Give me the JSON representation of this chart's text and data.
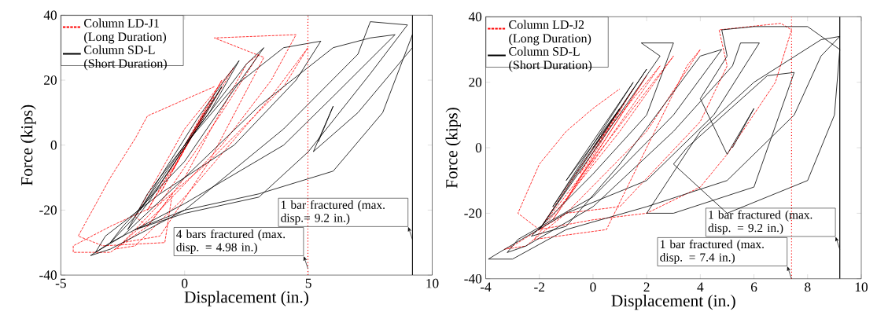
{
  "chart_data": [
    {
      "type": "line",
      "xlabel": "Displacement (in.)",
      "ylabel": "Force (kips)",
      "xlim": [
        -5,
        10
      ],
      "ylim": [
        -40,
        40
      ],
      "xticks": [
        -5,
        0,
        5,
        10
      ],
      "yticks": [
        -40,
        -20,
        0,
        20,
        40
      ],
      "legend": "top left",
      "ref_lines": [
        {
          "axis": "x",
          "value": 4.98,
          "color": "#ff0000",
          "line_style": "dotted"
        },
        {
          "axis": "x",
          "value": 9.2,
          "color": "#000000",
          "line_style": "solid"
        }
      ],
      "annotations": [
        {
          "text": "4 bars fractured (max. disp. = 4.98 in.)",
          "x": 4.98,
          "y": -38
        },
        {
          "text": "1 bar fractured (max. disp.= 9.2 in.)",
          "x": 9.2,
          "y": -29
        }
      ],
      "series": [
        {
          "name": "Column LD-J1 (Long Duration)",
          "color": "#ff0000",
          "line_style": "dashed",
          "x": [
            0,
            0.8,
            -0.5,
            1.2,
            -1,
            1.5,
            -1.5,
            2,
            0,
            -2,
            -1.5,
            0,
            2.5,
            3,
            1.5,
            -1,
            -2.5,
            -1,
            1,
            3.2,
            1.2,
            4.5,
            3.5,
            1.5,
            -1,
            -2.8,
            -2,
            0,
            3.5,
            4.98,
            4,
            1,
            -1,
            -3,
            -4.5,
            -4.5,
            -3,
            -1.5,
            -0.5,
            -0.8,
            -3.3,
            -4.3,
            -3,
            -2,
            -1.5,
            0,
            1.2
          ],
          "values": [
            0,
            10,
            -8,
            15,
            -15,
            20,
            -20,
            24,
            5,
            -22,
            -25,
            -10,
            25,
            28,
            10,
            -18,
            -30,
            -28,
            -5,
            27,
            33,
            34,
            20,
            0,
            -20,
            -32,
            -31,
            -16,
            15,
            30,
            18,
            -5,
            -18,
            -25,
            -31,
            -33,
            -33,
            -25,
            -15,
            -30,
            -31,
            -28,
            -10,
            2,
            9,
            14,
            18
          ]
        },
        {
          "name": "Column SD-L (Short Duration)",
          "color": "#000000",
          "line_style": "solid",
          "x": [
            0,
            1,
            1.5,
            0.5,
            -1,
            -1.8,
            -1,
            0.5,
            1.8,
            2.2,
            1,
            -1.5,
            -2.3,
            -1.5,
            0.5,
            2.5,
            3.2,
            1.8,
            0,
            -2.5,
            -3,
            -2,
            0,
            2,
            4,
            5.5,
            4.5,
            2,
            -1,
            -3.2,
            -3.6,
            -2.5,
            0,
            3,
            6,
            7.5,
            8.5,
            6,
            4,
            0,
            -3,
            -3.8,
            -3,
            0,
            4,
            7,
            7.5,
            9,
            7.5,
            5,
            3,
            0,
            -2,
            0,
            3,
            6,
            8,
            9.2,
            9.2,
            7,
            5.2,
            6,
            5.4
          ],
          "values": [
            0,
            12,
            18,
            5,
            -12,
            -20,
            -10,
            8,
            22,
            26,
            10,
            -15,
            -26,
            -18,
            5,
            25,
            30,
            15,
            -5,
            -25,
            -30,
            -22,
            0,
            18,
            30,
            32,
            20,
            0,
            -15,
            -28,
            -33,
            -28,
            -10,
            12,
            30,
            33,
            34,
            15,
            0,
            -18,
            -30,
            -34,
            -32,
            -20,
            5,
            28,
            38,
            37,
            22,
            -2,
            -16,
            -21,
            -26,
            -20,
            -15,
            -8,
            10,
            34,
            30,
            10,
            -2,
            12,
            1
          ]
        }
      ]
    },
    {
      "type": "line",
      "xlabel": "Displacement (in.)",
      "ylabel": "Force (kips)",
      "xlim": [
        -4,
        10
      ],
      "ylim": [
        -40,
        40
      ],
      "xticks": [
        -4,
        -2,
        0,
        2,
        4,
        6,
        8,
        10
      ],
      "yticks": [
        -40,
        -20,
        0,
        20,
        40
      ],
      "legend": "top left",
      "ref_lines": [
        {
          "axis": "x",
          "value": 7.4,
          "color": "#ff0000",
          "line_style": "dotted"
        },
        {
          "axis": "x",
          "value": 9.2,
          "color": "#000000",
          "line_style": "solid"
        }
      ],
      "annotations": [
        {
          "text": "1 bar fractured (max. disp. = 7.4 in.)",
          "x": 7.4,
          "y": -40
        },
        {
          "text": "1 bar fractured (max. disp. = 9.2 in.)",
          "x": 9.2,
          "y": -31
        }
      ],
      "series": [
        {
          "name": "Column LD-J2 (Long Duration)",
          "color": "#ff0000",
          "line_style": "dashed",
          "x": [
            0,
            1,
            -0.5,
            1.5,
            -1,
            2,
            -1.5,
            2.5,
            0,
            -2,
            3,
            1,
            -2.2,
            0.5,
            3.5,
            4,
            2,
            -1,
            -3,
            -3.3,
            -2.5,
            -1,
            1,
            4,
            5,
            4.7,
            7,
            7.4,
            6.8,
            5,
            4,
            2,
            0,
            -2,
            -2.8,
            -2,
            -1,
            0,
            1
          ],
          "values": [
            0,
            12,
            -8,
            18,
            -16,
            22,
            -22,
            25,
            0,
            -25,
            28,
            5,
            -28,
            -25,
            25,
            30,
            5,
            -20,
            -30,
            -31,
            -30,
            -20,
            -18,
            8,
            25,
            36,
            38,
            36,
            20,
            -2,
            -12,
            -20,
            -22,
            -25,
            -20,
            -5,
            5,
            12,
            18
          ]
        },
        {
          "name": "Column SD-L (Short Duration)",
          "color": "#000000",
          "line_style": "solid",
          "x": [
            0,
            1,
            -1,
            1.5,
            -1.5,
            2,
            -2,
            2.5,
            1.8,
            3,
            2,
            0,
            -2.3,
            -1,
            1,
            4,
            4.8,
            3,
            0,
            -2.8,
            -3.2,
            -2.5,
            0,
            3,
            5.2,
            5.5,
            6.2,
            4.5,
            2,
            -1,
            -3.5,
            -3.9,
            -3,
            -1,
            2,
            5,
            7.5,
            8.5,
            9.2,
            8.5,
            6,
            4,
            2,
            3,
            6,
            7.5,
            6.5,
            3.5,
            3,
            5,
            8,
            9,
            9.2,
            8,
            6,
            4.8,
            5,
            4,
            5,
            6,
            5.2
          ],
          "values": [
            0,
            12,
            -10,
            20,
            -18,
            24,
            -25,
            28,
            32,
            32,
            10,
            -8,
            -27,
            -24,
            -5,
            28,
            30,
            10,
            -15,
            -28,
            -32,
            -30,
            -18,
            5,
            25,
            32,
            32,
            10,
            -10,
            -20,
            -32,
            -34,
            -34,
            -25,
            -18,
            -10,
            10,
            28,
            34,
            33,
            20,
            5,
            -20,
            -20,
            -12,
            23,
            22,
            0,
            -5,
            -20,
            -10,
            10,
            30,
            37,
            37,
            36,
            28,
            15,
            -2,
            12,
            0
          ]
        }
      ]
    }
  ]
}
